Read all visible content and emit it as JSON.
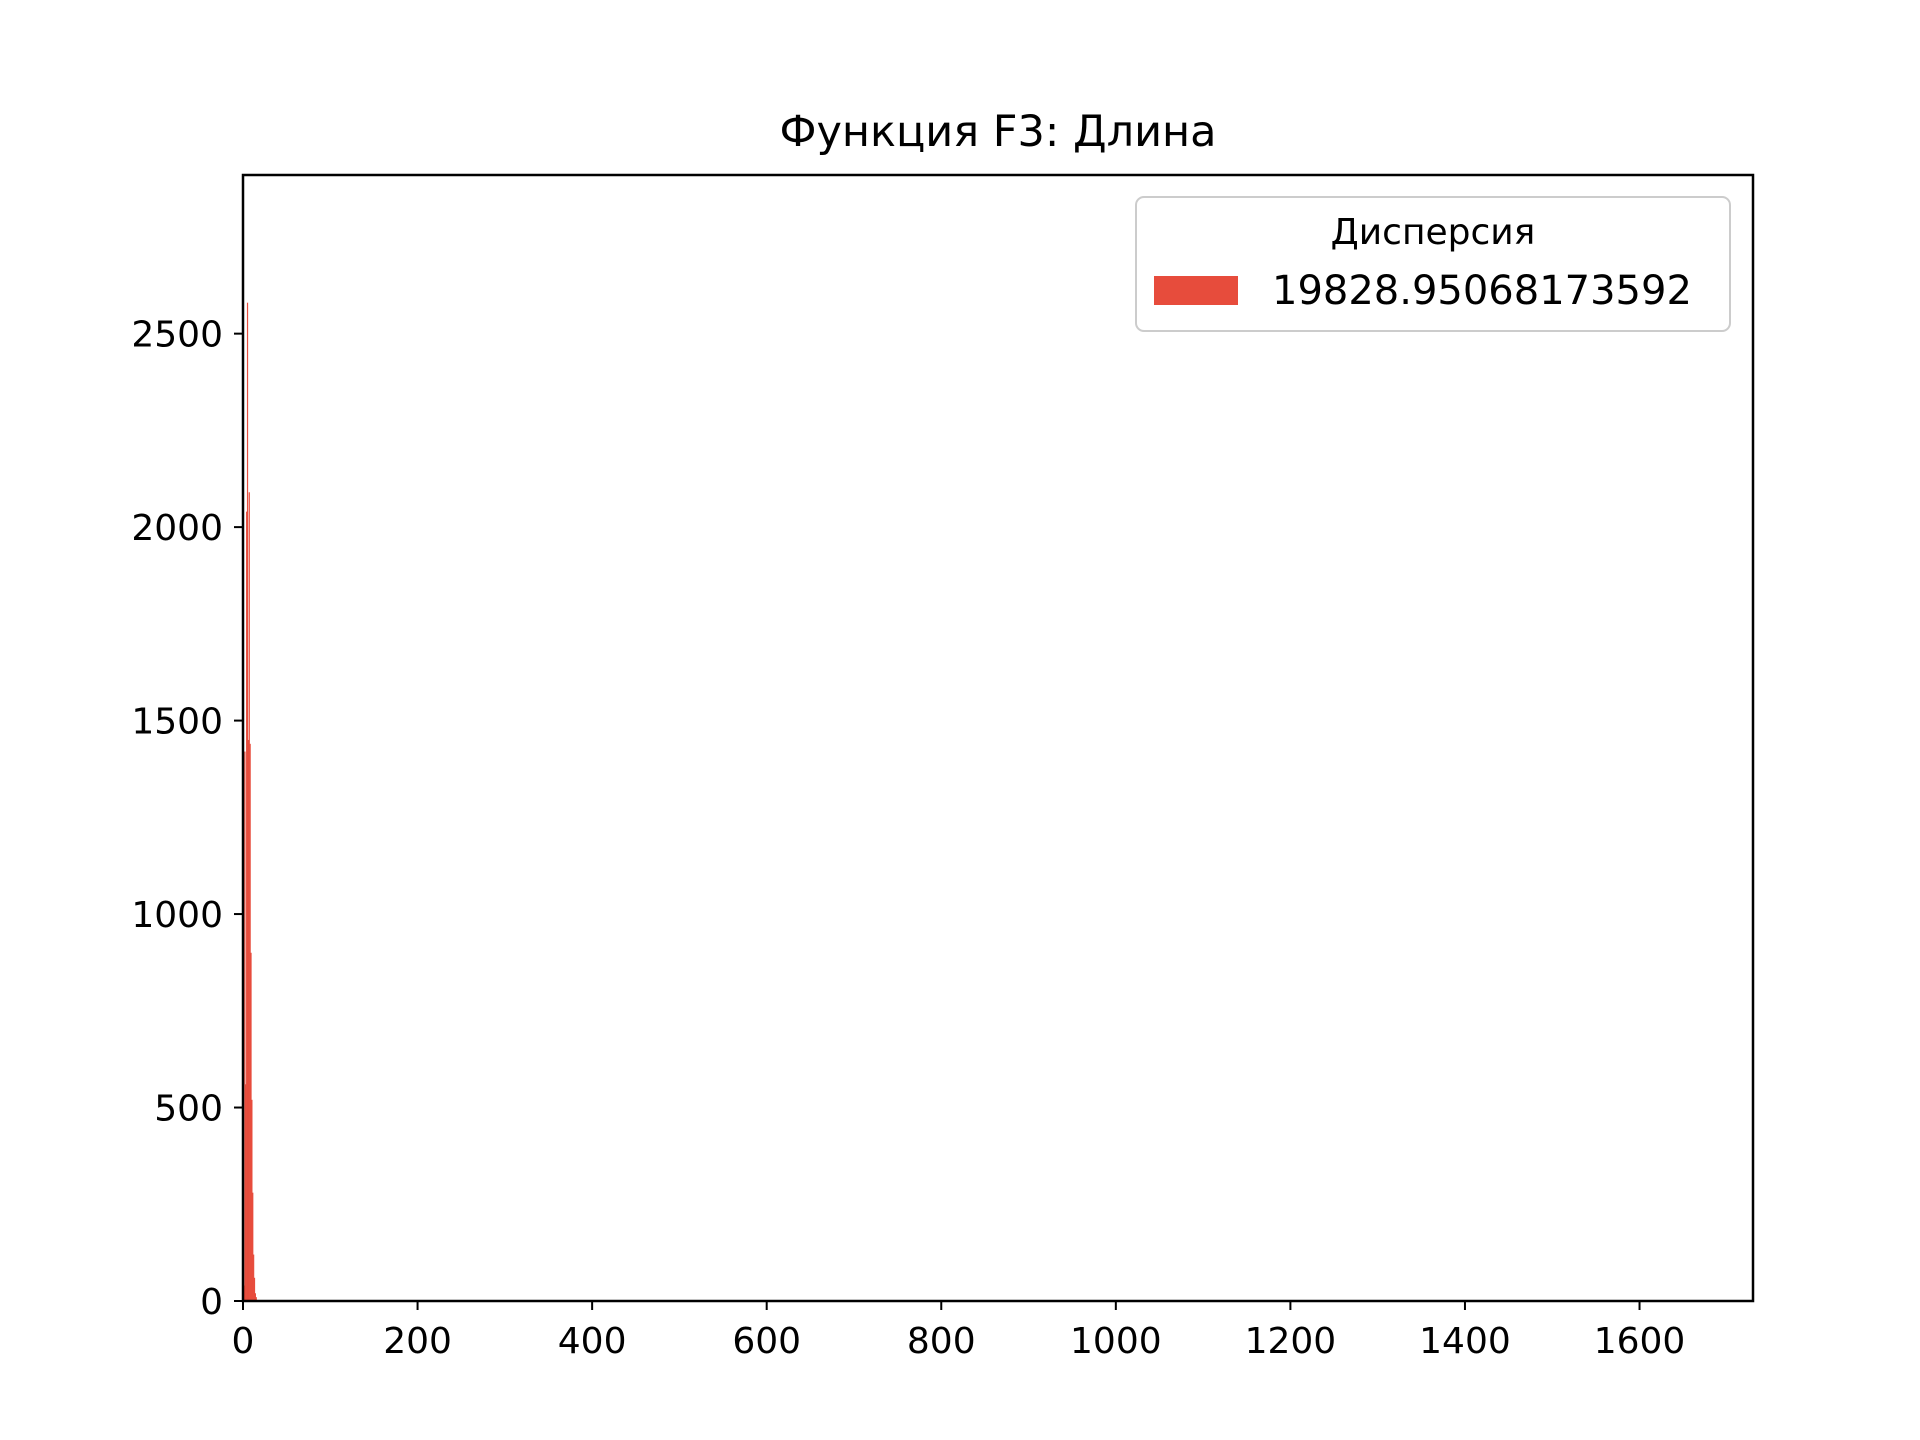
{
  "chart_data": {
    "type": "bar",
    "title": "Функция F3: Длина",
    "xlabel": "",
    "ylabel": "",
    "xlim": [
      0,
      1730
    ],
    "ylim": [
      0,
      2910
    ],
    "x_ticks": [
      0,
      200,
      400,
      600,
      800,
      1000,
      1200,
      1400,
      1600
    ],
    "y_ticks": [
      0,
      500,
      1000,
      1500,
      2000,
      2500
    ],
    "grid": false,
    "legend": {
      "title": "Дисперсия",
      "position": "top-right"
    },
    "series": [
      {
        "name": "19828.95068173592",
        "color": "#e74c3c",
        "x": [
          1,
          2,
          3,
          4,
          5,
          6,
          7,
          8,
          9,
          10,
          11,
          12,
          13,
          14,
          15
        ],
        "values": [
          40,
          1420,
          560,
          2040,
          2580,
          1450,
          2090,
          1440,
          900,
          520,
          280,
          120,
          60,
          20,
          10
        ]
      }
    ]
  }
}
